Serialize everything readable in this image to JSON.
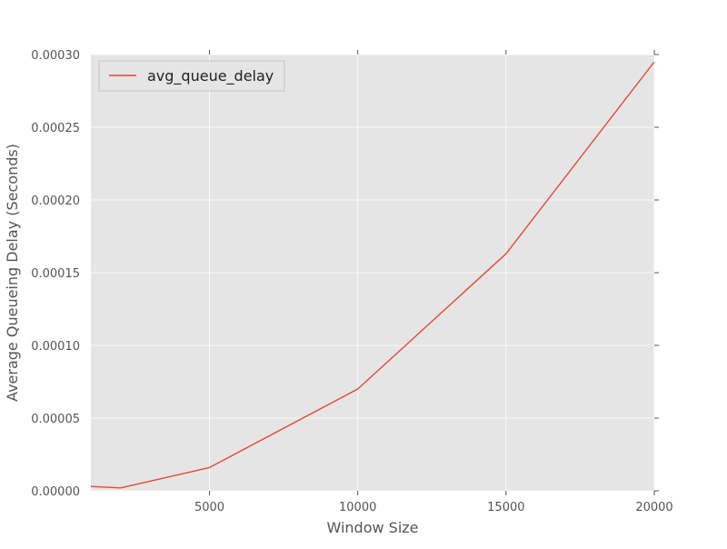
{
  "chart_data": {
    "type": "line",
    "xlabel": "Window Size",
    "ylabel": "Average Queueing Delay (Seconds)",
    "xlim": [
      1000,
      20000
    ],
    "ylim": [
      0,
      0.0003
    ],
    "x_ticks": [
      5000,
      10000,
      15000,
      20000
    ],
    "x_tick_labels": [
      "5000",
      "10000",
      "15000",
      "20000"
    ],
    "y_ticks": [
      0,
      5e-05,
      0.0001,
      0.00015,
      0.0002,
      0.00025,
      0.0003
    ],
    "y_tick_labels": [
      "0.00000",
      "0.00005",
      "0.00010",
      "0.00015",
      "0.00020",
      "0.00025",
      "0.00030"
    ],
    "grid": true,
    "legend_position": "upper-left",
    "series": [
      {
        "name": "avg_queue_delay",
        "color": "#e24a33",
        "x": [
          1000,
          2000,
          5000,
          10000,
          15000,
          20000
        ],
        "y": [
          3e-06,
          2e-06,
          1.6e-05,
          7e-05,
          0.000163,
          0.000295
        ]
      }
    ],
    "background_color": "#e5e5e5",
    "grid_color": "#ffffff"
  }
}
